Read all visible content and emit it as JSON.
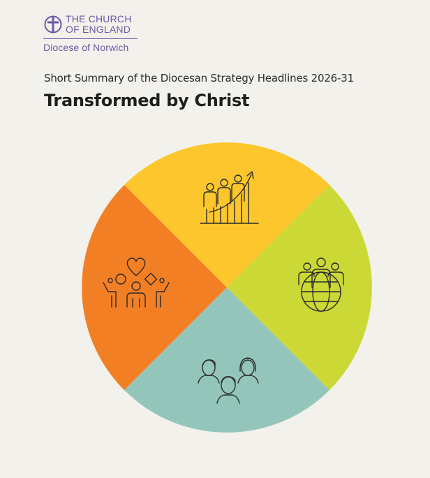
{
  "logo": {
    "line1": "THE CHURCH",
    "line2": "OF ENGLAND",
    "diocese": "Diocese of Norwich",
    "color": "#6c5aa8",
    "icon": "cross-in-circle-icon"
  },
  "header": {
    "subtitle": "Short Summary of the Diocesan Strategy Headlines 2026-31",
    "title": "Transformed by Christ"
  },
  "wheel": {
    "segments": [
      {
        "name": "top",
        "color": "#fcc62c",
        "icon": "growth-chart-people-icon"
      },
      {
        "name": "right",
        "color": "#cbd836",
        "icon": "people-globe-icon"
      },
      {
        "name": "bottom",
        "color": "#93c5bb",
        "icon": "family-group-icon"
      },
      {
        "name": "left",
        "color": "#f37f25",
        "icon": "community-heart-icon"
      }
    ]
  }
}
